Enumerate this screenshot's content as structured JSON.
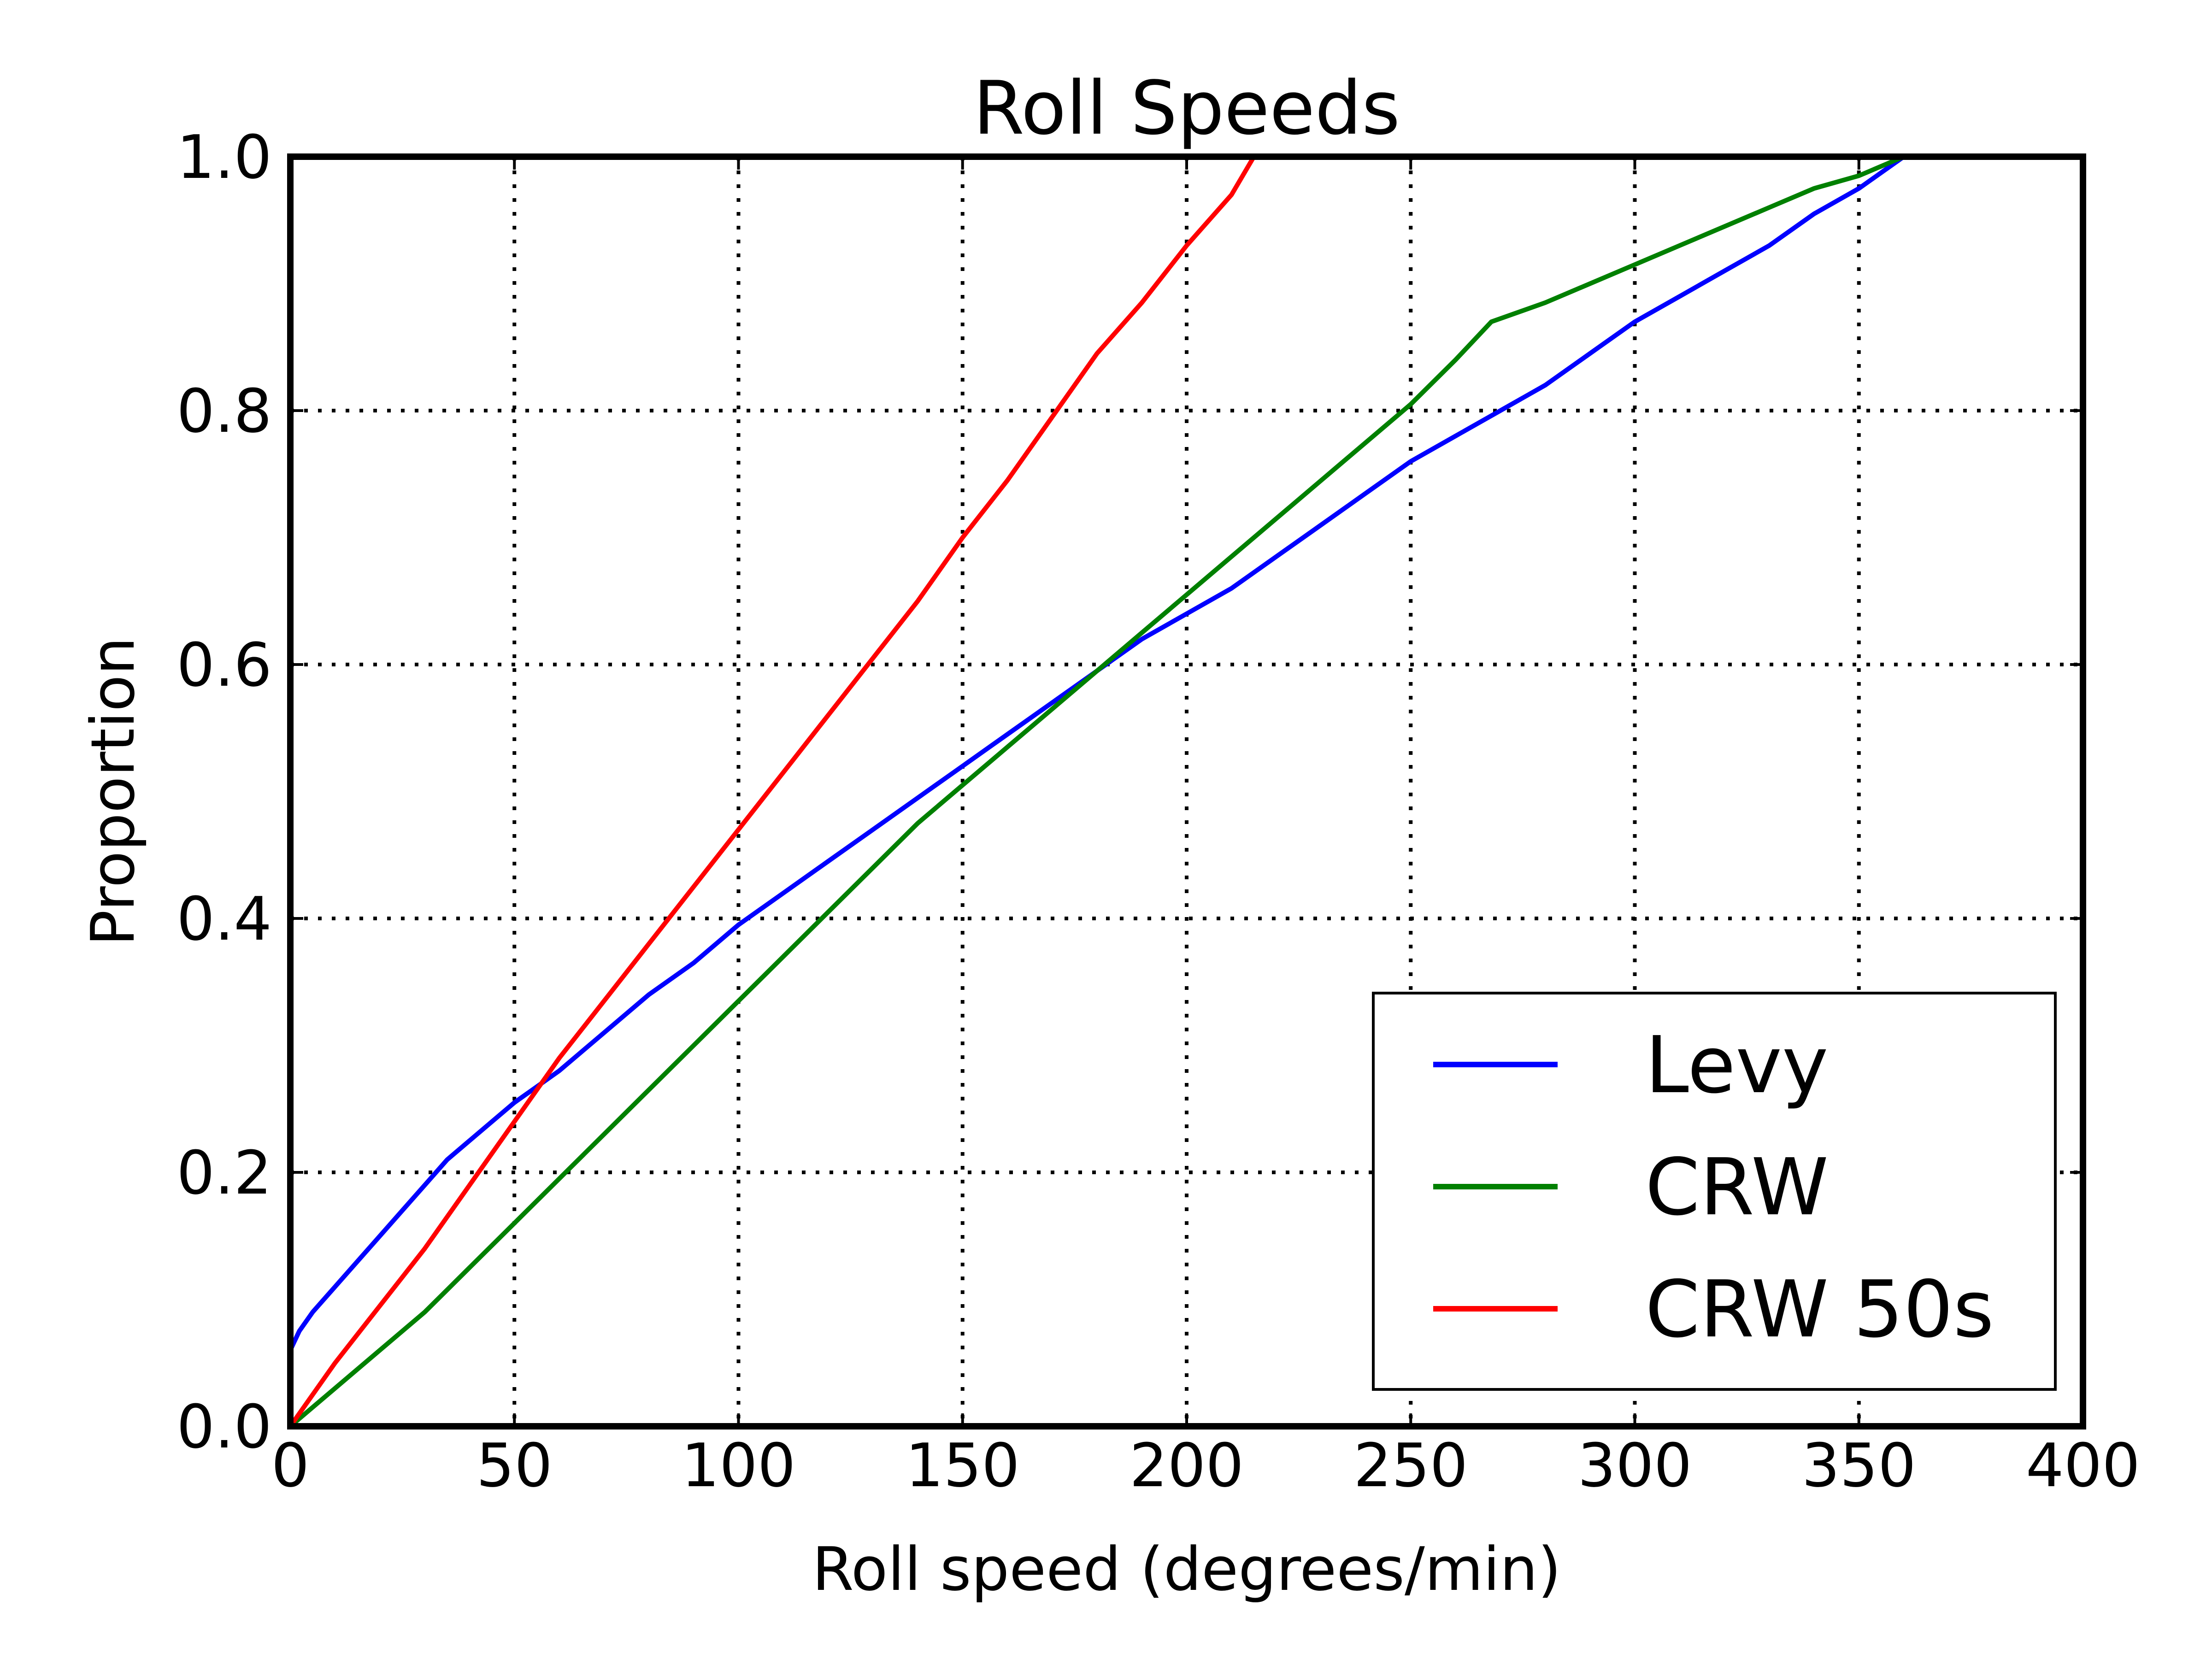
{
  "chart_data": {
    "type": "line",
    "title": "Roll Speeds",
    "xlabel": "Roll speed (degrees/min)",
    "ylabel": "Proportion",
    "xlim": [
      0,
      400
    ],
    "ylim": [
      0,
      1.0
    ],
    "x_ticks": [
      0,
      50,
      100,
      150,
      200,
      250,
      300,
      350,
      400
    ],
    "x_tick_labels": [
      "0",
      "50",
      "100",
      "150",
      "200",
      "250",
      "300",
      "350",
      "400"
    ],
    "y_ticks": [
      0,
      0.2,
      0.4,
      0.6,
      0.8,
      1.0
    ],
    "y_tick_labels": [
      "0.0",
      "0.2",
      "0.4",
      "0.6",
      "0.8",
      "1.0"
    ],
    "grid": true,
    "legend_position": "lower-right",
    "series": [
      {
        "name": "Levy",
        "color": "#0000ff",
        "x": [
          0,
          2,
          5,
          10,
          15,
          20,
          25,
          30,
          35,
          40,
          45,
          50,
          60,
          70,
          80,
          90,
          100,
          110,
          120,
          130,
          140,
          150,
          160,
          170,
          180,
          190,
          200,
          210,
          220,
          230,
          240,
          250,
          260,
          270,
          280,
          290,
          300,
          310,
          320,
          330,
          340,
          350,
          360
        ],
        "y": [
          0.06,
          0.075,
          0.09,
          0.11,
          0.13,
          0.15,
          0.17,
          0.19,
          0.21,
          0.225,
          0.24,
          0.255,
          0.28,
          0.31,
          0.34,
          0.365,
          0.395,
          0.42,
          0.445,
          0.47,
          0.495,
          0.52,
          0.545,
          0.57,
          0.595,
          0.62,
          0.64,
          0.66,
          0.685,
          0.71,
          0.735,
          0.76,
          0.78,
          0.8,
          0.82,
          0.845,
          0.87,
          0.89,
          0.91,
          0.93,
          0.955,
          0.975,
          1.0
        ]
      },
      {
        "name": "CRW",
        "color": "#008000",
        "x": [
          0,
          10,
          20,
          30,
          40,
          50,
          60,
          70,
          80,
          90,
          100,
          110,
          120,
          130,
          140,
          150,
          160,
          170,
          180,
          190,
          200,
          210,
          220,
          230,
          240,
          250,
          260,
          268,
          280,
          290,
          300,
          310,
          320,
          330,
          340,
          350,
          360
        ],
        "y": [
          0.0,
          0.03,
          0.06,
          0.09,
          0.125,
          0.16,
          0.195,
          0.23,
          0.265,
          0.3,
          0.335,
          0.37,
          0.405,
          0.44,
          0.475,
          0.505,
          0.535,
          0.565,
          0.595,
          0.625,
          0.655,
          0.685,
          0.715,
          0.745,
          0.775,
          0.805,
          0.84,
          0.87,
          0.885,
          0.9,
          0.915,
          0.93,
          0.945,
          0.96,
          0.975,
          0.985,
          1.0
        ]
      },
      {
        "name": "CRW 50s",
        "color": "#ff0000",
        "x": [
          0,
          10,
          20,
          30,
          40,
          50,
          60,
          70,
          80,
          90,
          100,
          110,
          120,
          130,
          140,
          150,
          160,
          170,
          180,
          190,
          200,
          210,
          215
        ],
        "y": [
          0.0,
          0.05,
          0.095,
          0.14,
          0.19,
          0.24,
          0.29,
          0.335,
          0.38,
          0.425,
          0.47,
          0.515,
          0.56,
          0.605,
          0.65,
          0.7,
          0.745,
          0.795,
          0.845,
          0.885,
          0.93,
          0.97,
          1.0
        ]
      }
    ]
  }
}
